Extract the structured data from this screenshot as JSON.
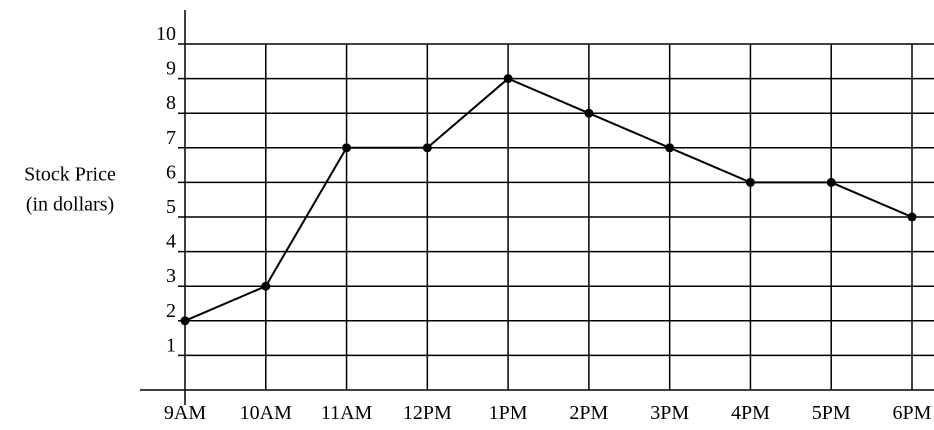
{
  "chart_data": {
    "type": "line",
    "ylabel_lines": [
      "Stock Price",
      "(in dollars)"
    ],
    "categories": [
      "9AM",
      "10AM",
      "11AM",
      "12PM",
      "1PM",
      "2PM",
      "3PM",
      "4PM",
      "5PM",
      "6PM"
    ],
    "values": [
      2,
      3,
      7,
      7,
      9,
      8,
      7,
      6,
      6,
      5
    ],
    "color": "#000000",
    "ylim": [
      0,
      10
    ],
    "yticks": [
      1,
      2,
      3,
      4,
      5,
      6,
      7,
      8,
      9,
      10
    ],
    "grid": true
  }
}
